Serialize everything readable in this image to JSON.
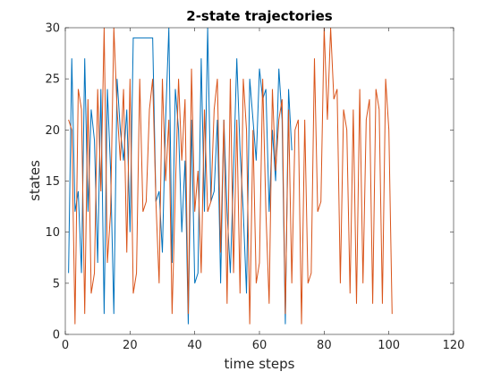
{
  "chart_data": {
    "type": "line",
    "title": "2-state trajectories",
    "xlabel": "time steps",
    "ylabel": "states",
    "xlim": [
      0,
      120
    ],
    "ylim": [
      0,
      30
    ],
    "xticks": [
      0,
      20,
      40,
      60,
      80,
      100,
      120
    ],
    "yticks": [
      0,
      5,
      10,
      15,
      20,
      25,
      30
    ],
    "grid": false,
    "legend": "none",
    "series": [
      {
        "color": "#0072BD",
        "x": [
          1,
          2,
          3,
          4,
          5,
          6,
          7,
          8,
          9,
          10,
          11,
          12,
          13,
          14,
          15,
          16,
          17,
          18,
          19,
          20,
          21,
          22,
          23,
          24,
          25,
          26,
          27,
          28,
          29,
          30,
          31,
          32,
          33,
          34,
          35,
          36,
          37,
          38,
          39,
          40,
          41,
          42,
          43,
          44,
          45,
          46,
          47,
          48,
          49,
          50,
          51,
          52,
          53,
          54,
          55,
          56,
          57,
          58,
          59,
          60,
          61,
          62,
          63,
          64,
          65,
          66,
          67,
          68,
          69,
          70
        ],
        "y": [
          6,
          27,
          12,
          14,
          6,
          27,
          12,
          22,
          19,
          7,
          24,
          2,
          24,
          16,
          2,
          25,
          20,
          17,
          22,
          10,
          29,
          29,
          29,
          29,
          29,
          29,
          29,
          13,
          14,
          8,
          21,
          30,
          7,
          24,
          20,
          10,
          17,
          1,
          21,
          5,
          6,
          27,
          12,
          30,
          13,
          14,
          21,
          5,
          21,
          12,
          6,
          16,
          27,
          18,
          12,
          4,
          25,
          21,
          17,
          26,
          23,
          24,
          12,
          20,
          15,
          26,
          21,
          1,
          24,
          18
        ]
      },
      {
        "color": "#D95319",
        "x": [
          1,
          2,
          3,
          4,
          5,
          6,
          7,
          8,
          9,
          10,
          11,
          12,
          13,
          14,
          15,
          16,
          17,
          18,
          19,
          20,
          21,
          22,
          23,
          24,
          25,
          26,
          27,
          28,
          29,
          30,
          31,
          32,
          33,
          34,
          35,
          36,
          37,
          38,
          39,
          40,
          41,
          42,
          43,
          44,
          45,
          46,
          47,
          48,
          49,
          50,
          51,
          52,
          53,
          54,
          55,
          56,
          57,
          58,
          59,
          60,
          61,
          62,
          63,
          64,
          65,
          66,
          67,
          68,
          69,
          70,
          71,
          72,
          73,
          74,
          75,
          76,
          77,
          78,
          79,
          80,
          81,
          82,
          83,
          84,
          85,
          86,
          87,
          88,
          89,
          90,
          91,
          92,
          93,
          94,
          95,
          96,
          97,
          98,
          99,
          100,
          101
        ],
        "y": [
          21,
          20,
          1,
          24,
          22,
          2,
          23,
          4,
          6,
          24,
          14,
          30,
          7,
          12,
          30,
          22,
          17,
          24,
          8,
          25,
          4,
          6,
          25,
          12,
          13,
          22,
          25,
          13,
          5,
          25,
          15,
          21,
          2,
          14,
          25,
          17,
          23,
          2,
          26,
          12,
          16,
          6,
          22,
          12,
          13,
          22,
          25,
          8,
          21,
          3,
          25,
          6,
          21,
          4,
          25,
          20,
          1,
          20,
          5,
          7,
          25,
          12,
          3,
          24,
          16,
          21,
          23,
          2,
          22,
          5,
          20,
          21,
          1,
          21,
          5,
          6,
          27,
          12,
          13,
          30,
          21,
          30,
          23,
          24,
          5,
          22,
          20,
          4,
          22,
          3,
          24,
          5,
          21,
          23,
          3,
          24,
          22,
          3,
          25,
          20,
          2
        ]
      }
    ]
  }
}
